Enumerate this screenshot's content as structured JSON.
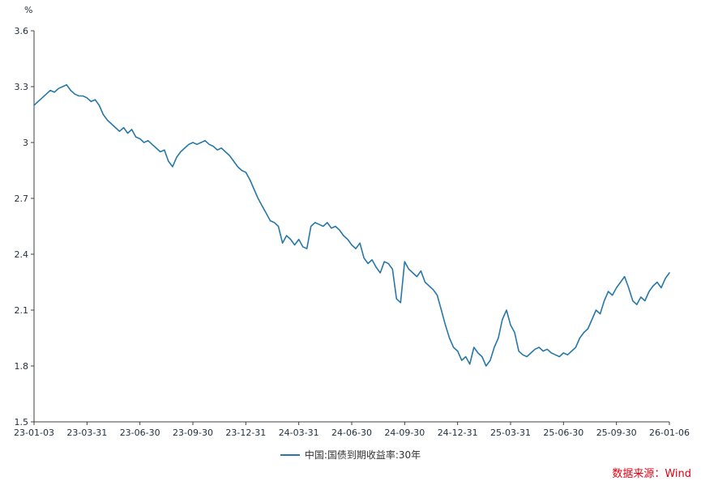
{
  "chart_data": {
    "type": "line",
    "title": "",
    "xlabel": "",
    "ylabel": "%",
    "ylim": [
      1.5,
      3.6
    ],
    "grid": false,
    "legend_position": "bottom",
    "y_ticks": [
      1.5,
      1.8,
      2.1,
      2.4,
      2.7,
      3,
      3.3,
      3.6
    ],
    "y_tick_labels": [
      "1.5",
      "1.8",
      "2.1",
      "2.4",
      "2.7",
      "3",
      "3.3",
      "3.6"
    ],
    "x_ticks": [
      "23-01-03",
      "23-03-31",
      "23-06-30",
      "23-09-30",
      "23-12-31",
      "24-03-31",
      "24-06-30",
      "24-09-30",
      "24-12-31",
      "25-03-31",
      "25-06-30",
      "25-09-30",
      "26-01-06"
    ],
    "series": [
      {
        "name": "中国:国债到期收益率:30年",
        "color": "#2778a9",
        "values": [
          3.2,
          3.22,
          3.24,
          3.26,
          3.28,
          3.27,
          3.29,
          3.3,
          3.31,
          3.28,
          3.26,
          3.25,
          3.25,
          3.24,
          3.22,
          3.23,
          3.2,
          3.15,
          3.12,
          3.1,
          3.08,
          3.06,
          3.08,
          3.05,
          3.07,
          3.03,
          3.02,
          3.0,
          3.01,
          2.99,
          2.97,
          2.95,
          2.96,
          2.9,
          2.87,
          2.92,
          2.95,
          2.97,
          2.99,
          3.0,
          2.99,
          3.0,
          3.01,
          2.99,
          2.98,
          2.96,
          2.97,
          2.95,
          2.93,
          2.9,
          2.87,
          2.85,
          2.84,
          2.8,
          2.75,
          2.7,
          2.66,
          2.62,
          2.58,
          2.57,
          2.55,
          2.46,
          2.5,
          2.48,
          2.45,
          2.48,
          2.44,
          2.43,
          2.55,
          2.57,
          2.56,
          2.55,
          2.57,
          2.54,
          2.55,
          2.53,
          2.5,
          2.48,
          2.45,
          2.43,
          2.46,
          2.38,
          2.35,
          2.37,
          2.33,
          2.3,
          2.36,
          2.35,
          2.32,
          2.16,
          2.14,
          2.36,
          2.32,
          2.3,
          2.28,
          2.31,
          2.25,
          2.23,
          2.21,
          2.18,
          2.1,
          2.02,
          1.95,
          1.9,
          1.88,
          1.83,
          1.85,
          1.81,
          1.9,
          1.87,
          1.85,
          1.8,
          1.83,
          1.9,
          1.95,
          2.05,
          2.1,
          2.02,
          1.98,
          1.88,
          1.86,
          1.85,
          1.87,
          1.89,
          1.9,
          1.88,
          1.89,
          1.87,
          1.86,
          1.85,
          1.87,
          1.86,
          1.88,
          1.9,
          1.95,
          1.98,
          2.0,
          2.05,
          2.1,
          2.08,
          2.15,
          2.2,
          2.18,
          2.22,
          2.25,
          2.28,
          2.22,
          2.15,
          2.13,
          2.17,
          2.15,
          2.2,
          2.23,
          2.25,
          2.22,
          2.27,
          2.3
        ]
      }
    ]
  },
  "legend": {
    "label": "中国:国债到期收益率:30年"
  },
  "source": {
    "label": "数据来源：Wind",
    "color": "#e50012"
  }
}
